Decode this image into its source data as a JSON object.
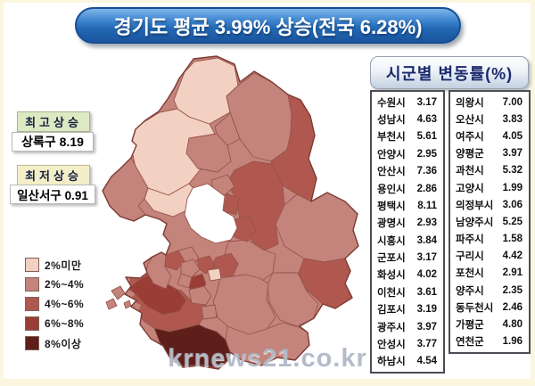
{
  "title": "경기도 평균 3.99% 상승(전국 6.28%)",
  "annotations": {
    "highest_label": "최고상승",
    "highest_value": "상록구 8.19",
    "lowest_label": "최저상승",
    "lowest_value": "일산서구 0.91"
  },
  "legend": {
    "items": [
      {
        "label": "2%미만",
        "color": "#f2d0c2"
      },
      {
        "label": "2%~4%",
        "color": "#c4837b"
      },
      {
        "label": "4%~6%",
        "color": "#b0584f"
      },
      {
        "label": "6%~8%",
        "color": "#9a3d36"
      },
      {
        "label": "8%이상",
        "color": "#5e1f1b"
      }
    ]
  },
  "table": {
    "title": "시군별 변동률(%)",
    "left": [
      {
        "name": "수원시",
        "value": "3.17"
      },
      {
        "name": "성남시",
        "value": "4.63"
      },
      {
        "name": "부천시",
        "value": "5.61"
      },
      {
        "name": "안양시",
        "value": "2.95"
      },
      {
        "name": "안산시",
        "value": "7.36"
      },
      {
        "name": "용인시",
        "value": "2.86"
      },
      {
        "name": "평택시",
        "value": "8.11"
      },
      {
        "name": "광명시",
        "value": "2.93"
      },
      {
        "name": "시흥시",
        "value": "3.84"
      },
      {
        "name": "군포시",
        "value": "3.17"
      },
      {
        "name": "화성시",
        "value": "4.02"
      },
      {
        "name": "이천시",
        "value": "3.61"
      },
      {
        "name": "김포시",
        "value": "3.19"
      },
      {
        "name": "광주시",
        "value": "3.97"
      },
      {
        "name": "안성시",
        "value": "3.77"
      },
      {
        "name": "하남시",
        "value": "4.54"
      }
    ],
    "right": [
      {
        "name": "의왕시",
        "value": "7.00"
      },
      {
        "name": "오산시",
        "value": "3.83"
      },
      {
        "name": "여주시",
        "value": "4.05"
      },
      {
        "name": "양평군",
        "value": "3.97"
      },
      {
        "name": "과천시",
        "value": "5.32"
      },
      {
        "name": "고양시",
        "value": "1.99"
      },
      {
        "name": "의정부시",
        "value": "3.06"
      },
      {
        "name": "남양주시",
        "value": "5.25"
      },
      {
        "name": "파주시",
        "value": "1.58"
      },
      {
        "name": "구리시",
        "value": "4.42"
      },
      {
        "name": "포천시",
        "value": "2.91"
      },
      {
        "name": "양주시",
        "value": "2.35"
      },
      {
        "name": "동두천시",
        "value": "2.46"
      },
      {
        "name": "가평군",
        "value": "4.80"
      },
      {
        "name": "연천군",
        "value": "1.96"
      }
    ]
  },
  "watermark": "krnews21.co.kr",
  "chart_data": {
    "type": "heatmap",
    "subtype": "choropleth-map",
    "title": "경기도 평균 3.99% 상승(전국 6.28%)",
    "region": "경기도",
    "average_pct": 3.99,
    "national_average_pct": 6.28,
    "unit": "%",
    "bins": [
      "2%미만",
      "2%~4%",
      "4%~6%",
      "6%~8%",
      "8%이상"
    ],
    "bin_colors": [
      "#f2d0c2",
      "#c4837b",
      "#b0584f",
      "#9a3d36",
      "#5e1f1b"
    ],
    "categories": [
      "수원시",
      "성남시",
      "부천시",
      "안양시",
      "안산시",
      "용인시",
      "평택시",
      "광명시",
      "시흥시",
      "군포시",
      "화성시",
      "이천시",
      "김포시",
      "광주시",
      "안성시",
      "하남시",
      "의왕시",
      "오산시",
      "여주시",
      "양평군",
      "과천시",
      "고양시",
      "의정부시",
      "남양주시",
      "파주시",
      "구리시",
      "포천시",
      "양주시",
      "동두천시",
      "가평군",
      "연천군"
    ],
    "values": [
      3.17,
      4.63,
      5.61,
      2.95,
      7.36,
      2.86,
      8.11,
      2.93,
      3.84,
      3.17,
      4.02,
      3.61,
      3.19,
      3.97,
      3.77,
      4.54,
      7.0,
      3.83,
      4.05,
      3.97,
      5.32,
      1.99,
      3.06,
      5.25,
      1.58,
      4.42,
      2.91,
      2.35,
      2.46,
      4.8,
      1.96
    ],
    "highest": {
      "name": "상록구",
      "value": 8.19
    },
    "lowest": {
      "name": "일산서구",
      "value": 0.91
    },
    "legend_position": "bottom-left"
  }
}
